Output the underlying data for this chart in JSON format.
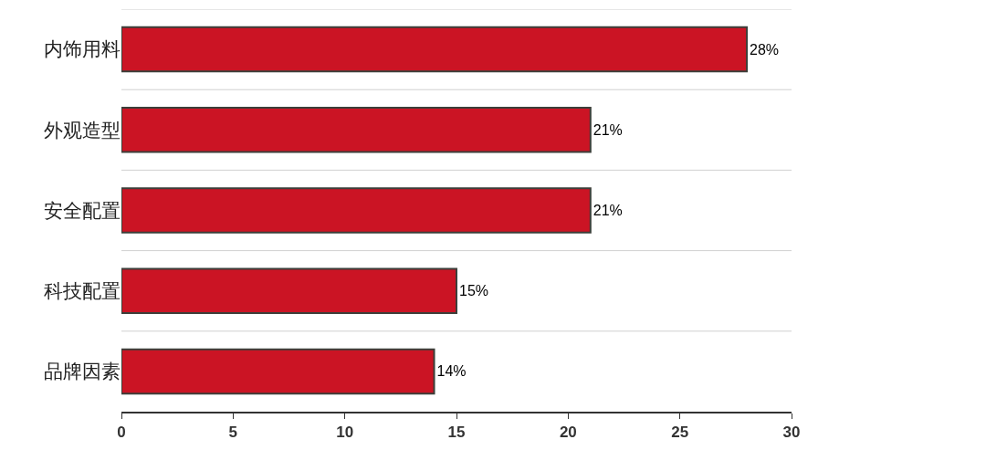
{
  "chart_data": {
    "type": "bar",
    "orientation": "horizontal",
    "categories": [
      "内饰用料",
      "外观造型",
      "安全配置",
      "科技配置",
      "品牌因素"
    ],
    "values": [
      28,
      21,
      21,
      15,
      14
    ],
    "value_labels": [
      "28%",
      "21%",
      "21%",
      "15%",
      "14%"
    ],
    "color": "#cb1424",
    "xlim": [
      0,
      30
    ],
    "xticks": [
      0,
      5,
      10,
      15,
      20,
      25,
      30
    ],
    "grid": "y",
    "legend": false
  }
}
